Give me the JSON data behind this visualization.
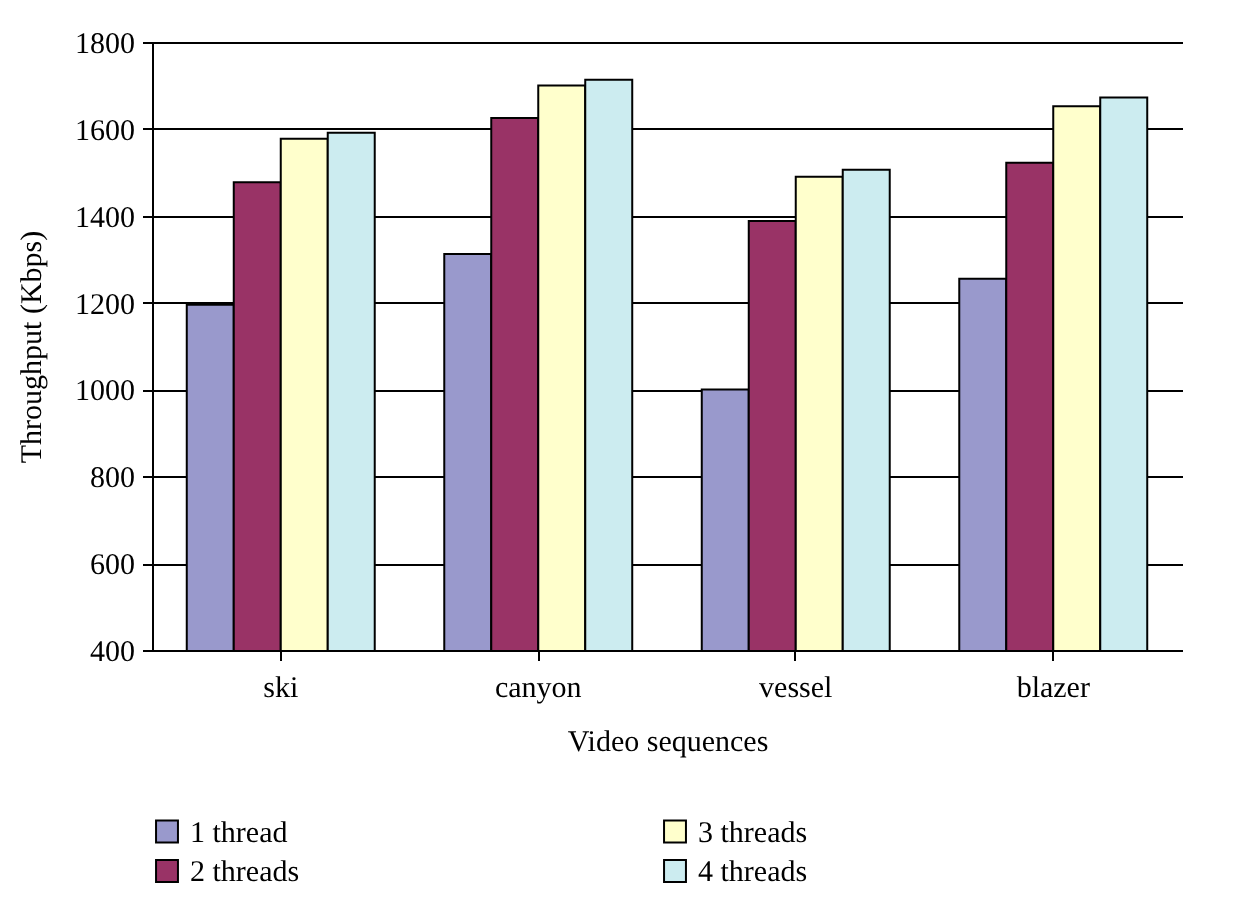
{
  "chart_data": {
    "type": "bar",
    "xlabel": "Video sequences",
    "ylabel": "Throughput (Kbps)",
    "categories": [
      "ski",
      "canyon",
      "vessel",
      "blazer"
    ],
    "series": [
      {
        "name": "1 thread",
        "color": "#9999cc",
        "values": [
          1195,
          1312,
          1000,
          1255
        ]
      },
      {
        "name": "2 threads",
        "color": "#993366",
        "values": [
          1477,
          1625,
          1388,
          1522
        ]
      },
      {
        "name": "3 threads",
        "color": "#ffffcc",
        "values": [
          1577,
          1700,
          1490,
          1652
        ]
      },
      {
        "name": "4 threads",
        "color": "#ccecf0",
        "values": [
          1591,
          1713,
          1506,
          1672
        ]
      }
    ],
    "ylim": [
      400,
      1800
    ],
    "yticks": [
      400,
      600,
      800,
      1000,
      1200,
      1400,
      1600,
      1800
    ],
    "grid": "y",
    "legend": "bottom"
  }
}
